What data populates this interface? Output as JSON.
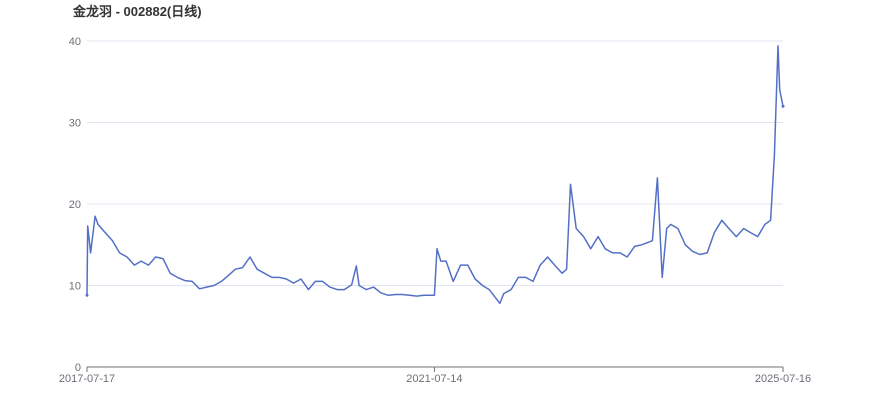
{
  "chart_data": {
    "type": "line",
    "title": "金龙羽 - 002882(日线)",
    "xlabel": "",
    "ylabel": "",
    "ylim": [
      0,
      40
    ],
    "yticks": [
      0,
      10,
      20,
      30,
      40
    ],
    "xticks": [
      "2017-07-17",
      "2021-07-14",
      "2025-07-16"
    ],
    "grid": true,
    "line_color": "#5470c6",
    "series": [
      {
        "x": [
          "2017-07-17",
          "2017-07-20",
          "2017-08-01",
          "2017-08-20",
          "2017-09-01",
          "2017-10-01",
          "2017-11-01",
          "2017-12-01",
          "2018-01-01",
          "2018-02-01",
          "2018-03-01",
          "2018-04-01",
          "2018-05-01",
          "2018-06-01",
          "2018-07-01",
          "2018-08-01",
          "2018-09-01",
          "2018-10-01",
          "2018-11-01",
          "2018-12-01",
          "2019-01-01",
          "2019-02-01",
          "2019-03-01",
          "2019-04-01",
          "2019-05-01",
          "2019-06-01",
          "2019-07-01",
          "2019-08-01",
          "2019-09-01",
          "2019-10-01",
          "2019-11-01",
          "2019-12-01",
          "2020-01-01",
          "2020-02-01",
          "2020-03-01",
          "2020-04-01",
          "2020-05-01",
          "2020-06-01",
          "2020-07-01",
          "2020-08-01",
          "2020-08-20",
          "2020-09-01",
          "2020-10-01",
          "2020-11-01",
          "2020-12-01",
          "2021-01-01",
          "2021-02-01",
          "2021-03-01",
          "2021-04-01",
          "2021-05-01",
          "2021-06-01",
          "2021-07-14",
          "2021-07-25",
          "2021-08-10",
          "2021-09-01",
          "2021-10-01",
          "2021-11-01",
          "2021-12-01",
          "2022-01-01",
          "2022-02-01",
          "2022-03-01",
          "2022-04-15",
          "2022-05-01",
          "2022-06-01",
          "2022-07-01",
          "2022-08-01",
          "2022-09-01",
          "2022-10-01",
          "2022-11-01",
          "2022-12-01",
          "2023-01-01",
          "2023-01-20",
          "2023-02-05",
          "2023-03-01",
          "2023-04-01",
          "2023-05-01",
          "2023-06-01",
          "2023-07-01",
          "2023-08-01",
          "2023-09-01",
          "2023-10-01",
          "2023-11-01",
          "2023-12-01",
          "2024-01-15",
          "2024-02-05",
          "2024-02-25",
          "2024-03-15",
          "2024-04-01",
          "2024-05-01",
          "2024-06-01",
          "2024-07-01",
          "2024-08-01",
          "2024-09-01",
          "2024-10-01",
          "2024-11-01",
          "2024-12-01",
          "2025-01-01",
          "2025-02-01",
          "2025-03-01",
          "2025-04-01",
          "2025-05-01",
          "2025-05-25",
          "2025-06-10",
          "2025-06-25",
          "2025-07-02",
          "2025-07-16"
        ],
        "y": [
          8.8,
          17.3,
          14,
          18.5,
          17.5,
          16.5,
          15.5,
          14,
          13.5,
          12.5,
          13,
          12.5,
          13.5,
          13.3,
          11.5,
          11,
          10.6,
          10.5,
          9.6,
          9.8,
          10,
          10.5,
          11.2,
          12,
          12.2,
          13.5,
          12,
          11.5,
          11,
          11,
          10.8,
          10.3,
          10.8,
          9.5,
          10.5,
          10.5,
          9.8,
          9.5,
          9.5,
          10.1,
          12.4,
          10,
          9.5,
          9.8,
          9.1,
          8.8,
          8.9,
          8.9,
          8.8,
          8.7,
          8.8,
          8.8,
          14.5,
          13,
          13,
          10.5,
          12.5,
          12.5,
          10.8,
          10,
          9.5,
          7.8,
          9,
          9.5,
          11,
          11,
          10.5,
          12.5,
          13.5,
          12.5,
          11.5,
          12,
          22.4,
          17,
          16,
          14.5,
          16,
          14.5,
          14,
          14,
          13.5,
          14.8,
          15,
          15.5,
          23.2,
          11,
          17,
          17.5,
          17,
          15,
          14.2,
          13.8,
          14,
          16.5,
          18,
          17,
          16,
          17,
          16.5,
          16,
          17.5,
          18,
          26,
          39.4,
          34,
          32
        ]
      }
    ]
  }
}
